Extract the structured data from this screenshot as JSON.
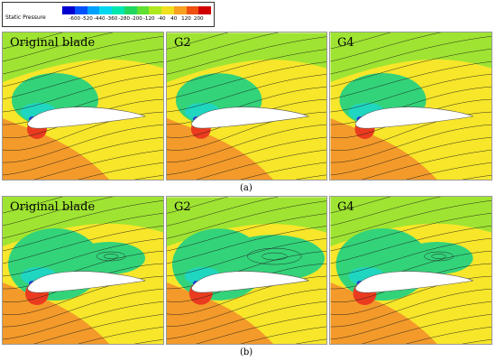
{
  "legend": {
    "title": "Static Pressure",
    "ticks": [
      "-600",
      "-520",
      "-440",
      "-360",
      "-280",
      "-200",
      "-120",
      "-40",
      "40",
      "120",
      "200"
    ],
    "colors": [
      "#0000d0",
      "#0050ff",
      "#00a0ff",
      "#00d8f0",
      "#00e8b0",
      "#20d860",
      "#60e030",
      "#b0e820",
      "#f0e020",
      "#f8a020",
      "#f05010",
      "#d00000"
    ]
  },
  "rows": [
    {
      "caption": "(a)",
      "panels": [
        {
          "label": "Original blade"
        },
        {
          "label": "G2"
        },
        {
          "label": "G4"
        }
      ]
    },
    {
      "caption": "(b)",
      "panels": [
        {
          "label": "Original blade"
        },
        {
          "label": "G2"
        },
        {
          "label": "G4"
        }
      ]
    }
  ]
}
